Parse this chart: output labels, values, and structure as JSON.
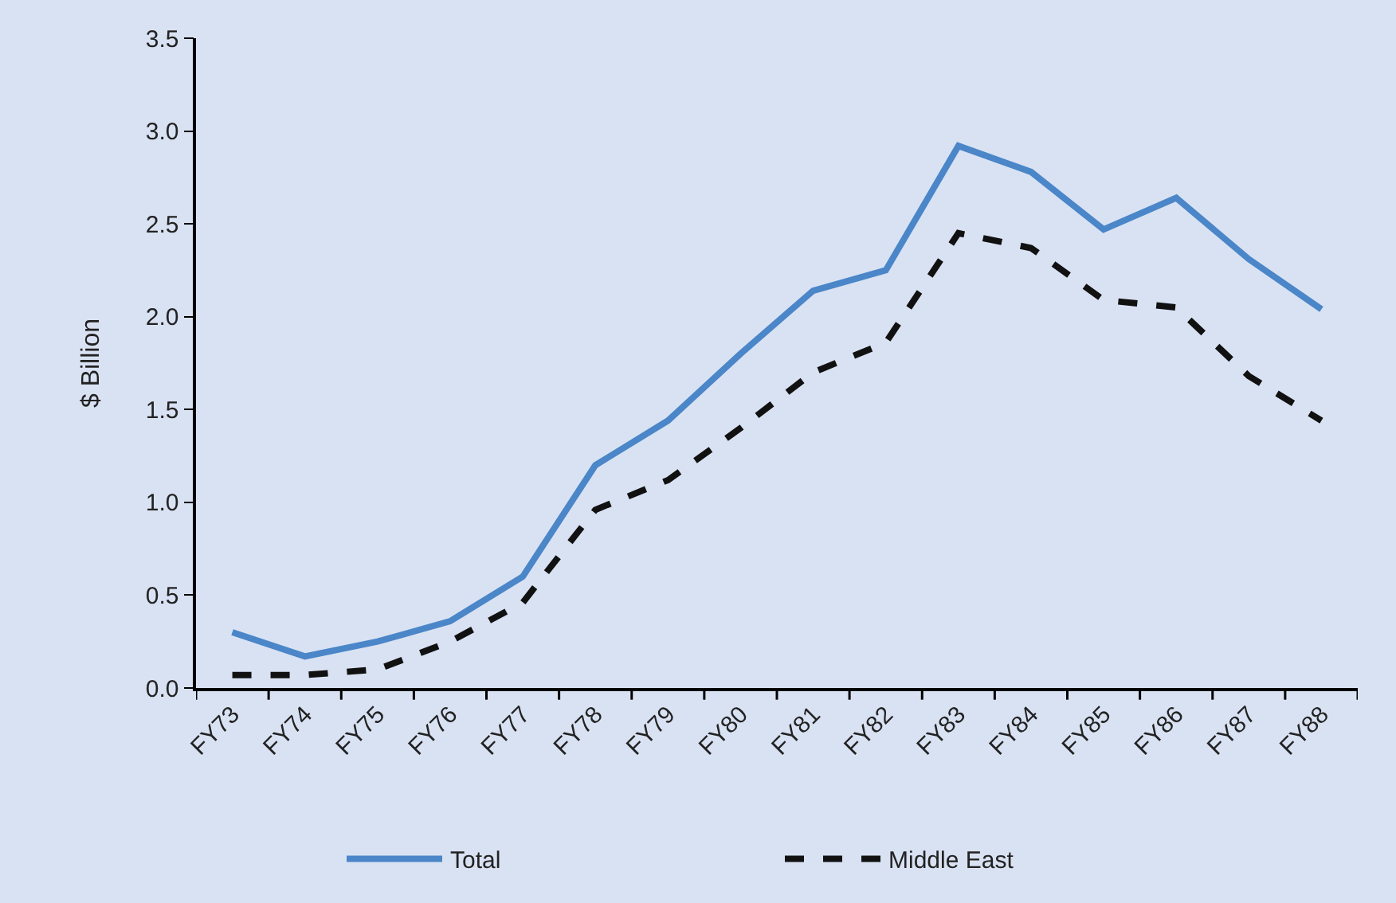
{
  "chart_data": {
    "type": "line",
    "ylabel": "$ Billion",
    "categories": [
      "FY73",
      "FY74",
      "FY75",
      "FY76",
      "FY77",
      "FY78",
      "FY79",
      "FY80",
      "FY81",
      "FY82",
      "FY83",
      "FY84",
      "FY85",
      "FY86",
      "FY87",
      "FY88"
    ],
    "series": [
      {
        "name": "Total",
        "color": "#4a86c8",
        "line_style": "solid",
        "values": [
          0.3,
          0.17,
          0.25,
          0.36,
          0.6,
          1.2,
          1.44,
          1.8,
          2.14,
          2.25,
          2.92,
          2.78,
          2.47,
          2.64,
          2.31,
          2.04
        ]
      },
      {
        "name": "Middle East",
        "color": "#111111",
        "line_style": "dashed",
        "values": [
          0.07,
          0.07,
          0.1,
          0.25,
          0.46,
          0.96,
          1.12,
          1.4,
          1.7,
          1.86,
          2.45,
          2.37,
          2.09,
          2.05,
          1.68,
          1.44
        ]
      }
    ],
    "ylim": [
      0,
      3.5
    ],
    "yticks": [
      {
        "value": 0,
        "label": "0.0"
      },
      {
        "value": 0.5,
        "label": "0.5"
      },
      {
        "value": 1,
        "label": "1.0"
      },
      {
        "value": 1.5,
        "label": "1.5"
      },
      {
        "value": 2,
        "label": "2.0"
      },
      {
        "value": 2.5,
        "label": "2.5"
      },
      {
        "value": 3,
        "label": "3.0"
      },
      {
        "value": 3.5,
        "label": "3.5"
      }
    ],
    "grid": false,
    "legend": "bottom",
    "marker": "none"
  }
}
